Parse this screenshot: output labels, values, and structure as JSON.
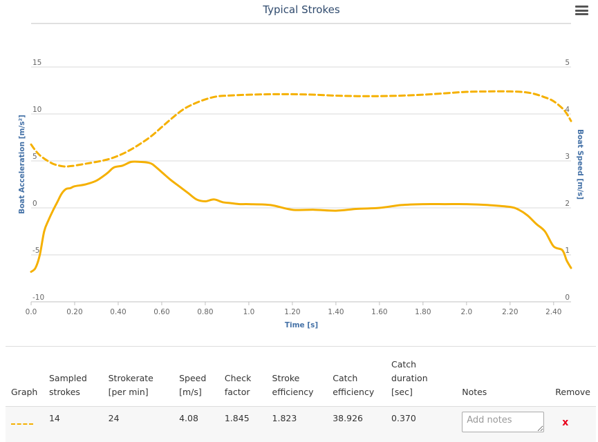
{
  "chart_data": {
    "type": "line",
    "title": "Typical Strokes",
    "xlabel": "Time [s]",
    "ylabel_left": "Boat Acceleration [m/s²]",
    "ylabel_right": "Boat Speed [m/s]",
    "xlim": [
      0,
      2.48
    ],
    "ylim_left": [
      -10,
      15
    ],
    "ylim_right": [
      0,
      5
    ],
    "x_ticks": [
      "0.0",
      "0.20",
      "0.40",
      "0.60",
      "0.80",
      "1.0",
      "1.20",
      "1.40",
      "1.60",
      "1.80",
      "2.0",
      "2.20",
      "2.40"
    ],
    "y_ticks_left": [
      "15",
      "10",
      "5",
      "0",
      "-5",
      "-10"
    ],
    "y_ticks_right": [
      "5",
      "4",
      "3",
      "2",
      "1",
      "0"
    ],
    "grid": true,
    "series": [
      {
        "axis": "left",
        "style": "solid",
        "color": "#f5b000",
        "x": [
          0.0,
          0.02,
          0.04,
          0.06,
          0.08,
          0.1,
          0.12,
          0.14,
          0.16,
          0.18,
          0.2,
          0.25,
          0.3,
          0.35,
          0.38,
          0.42,
          0.46,
          0.5,
          0.54,
          0.56,
          0.6,
          0.64,
          0.68,
          0.72,
          0.76,
          0.8,
          0.84,
          0.88,
          0.92,
          0.96,
          1.0,
          1.1,
          1.2,
          1.3,
          1.4,
          1.5,
          1.6,
          1.7,
          1.8,
          1.9,
          2.0,
          2.1,
          2.2,
          2.24,
          2.28,
          2.32,
          2.36,
          2.4,
          2.44,
          2.46,
          2.48
        ],
        "y": [
          -6.8,
          -6.4,
          -5.0,
          -2.5,
          -1.3,
          -0.3,
          0.6,
          1.5,
          2.0,
          2.1,
          2.3,
          2.5,
          2.9,
          3.7,
          4.3,
          4.5,
          4.9,
          4.9,
          4.8,
          4.6,
          3.8,
          3.0,
          2.3,
          1.6,
          0.9,
          0.7,
          0.9,
          0.6,
          0.5,
          0.4,
          0.4,
          0.3,
          -0.2,
          -0.2,
          -0.3,
          -0.1,
          0.0,
          0.3,
          0.4,
          0.4,
          0.4,
          0.3,
          0.1,
          -0.2,
          -0.8,
          -1.7,
          -2.5,
          -4.1,
          -4.5,
          -5.6,
          -6.4
        ]
      },
      {
        "axis": "right",
        "style": "dashed",
        "color": "#f5b000",
        "x": [
          0.0,
          0.02,
          0.04,
          0.06,
          0.08,
          0.1,
          0.12,
          0.14,
          0.16,
          0.18,
          0.2,
          0.25,
          0.3,
          0.35,
          0.4,
          0.45,
          0.5,
          0.55,
          0.6,
          0.65,
          0.7,
          0.75,
          0.8,
          0.85,
          0.9,
          1.0,
          1.1,
          1.2,
          1.3,
          1.4,
          1.5,
          1.6,
          1.7,
          1.8,
          1.9,
          2.0,
          2.1,
          2.2,
          2.25,
          2.3,
          2.35,
          2.4,
          2.45,
          2.48
        ],
        "y": [
          3.35,
          3.22,
          3.12,
          3.05,
          2.99,
          2.94,
          2.91,
          2.89,
          2.88,
          2.89,
          2.9,
          2.94,
          2.98,
          3.03,
          3.11,
          3.22,
          3.36,
          3.52,
          3.72,
          3.92,
          4.1,
          4.22,
          4.31,
          4.37,
          4.39,
          4.41,
          4.42,
          4.42,
          4.41,
          4.39,
          4.38,
          4.38,
          4.39,
          4.41,
          4.44,
          4.47,
          4.48,
          4.48,
          4.47,
          4.44,
          4.37,
          4.27,
          4.07,
          3.85
        ]
      }
    ]
  },
  "ui": {
    "menu_icon": "hamburger-menu-icon",
    "accent_color": "#f5b000",
    "remove_color": "#e8001c"
  },
  "table": {
    "headers": {
      "graph": "Graph",
      "sampled_1": "Sampled",
      "sampled_2": "strokes",
      "strokerate_1": "Strokerate",
      "strokerate_2": "[per min]",
      "speed_1": "Speed",
      "speed_2": "[m/s]",
      "check_1": "Check",
      "check_2": "factor",
      "stroke_eff_1": "Stroke",
      "stroke_eff_2": "efficiency",
      "catch_eff_1": "Catch",
      "catch_eff_2": "efficiency",
      "catch_dur_1": "Catch",
      "catch_dur_2": "duration [sec]",
      "notes": "Notes",
      "remove": "Remove"
    },
    "row": {
      "sampled_strokes": "14",
      "strokerate": "24",
      "speed": "4.08",
      "check_factor": "1.845",
      "stroke_efficiency": "1.823",
      "catch_efficiency": "38.926",
      "catch_duration": "0.370",
      "notes_placeholder": "Add notes",
      "remove_label": "x"
    }
  }
}
